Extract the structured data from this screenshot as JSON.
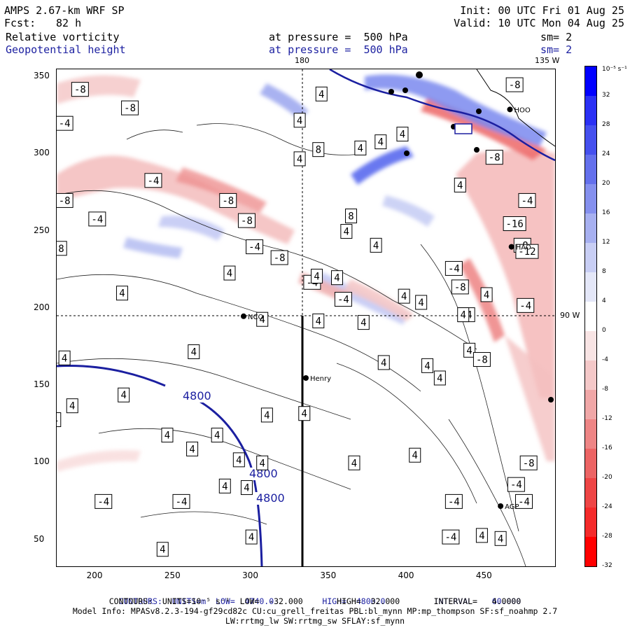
{
  "header": {
    "title": "AMPS 2.67-km WRF SP",
    "fcst_label": "Fcst:",
    "fcst_value": "82 h",
    "init": "Init: 00 UTC Fri 01 Aug 25",
    "valid": "Valid: 10 UTC Mon 04 Aug 25",
    "field1": "Relative vorticity",
    "field2": "Geopotential height",
    "pressure1": "at pressure =  500 hPa",
    "pressure2": "at pressure =  500 hPa",
    "sm1": "sm= 2",
    "sm2": "sm= 2"
  },
  "map": {
    "meridian_180": "180",
    "meridian_135w": "135 W",
    "meridian_90w": "90 W",
    "stations": [
      {
        "name": "NCO",
        "x": 295,
        "y": 195
      },
      {
        "name": "Henry",
        "x": 335,
        "y": 155
      },
      {
        "name": "AGP",
        "x": 460,
        "y": 72
      },
      {
        "name": "HAO",
        "x": 467,
        "y": 240
      },
      {
        "name": "HOO",
        "x": 466,
        "y": 329
      }
    ],
    "height_contour_labels": [
      "4800",
      "4800",
      "4800"
    ],
    "vort_labels": [
      {
        "t": "-8",
        "x": 190,
        "y": 342
      },
      {
        "t": "-8",
        "x": 222,
        "y": 330
      },
      {
        "t": "-4",
        "x": 180,
        "y": 320
      },
      {
        "t": "-4",
        "x": 237,
        "y": 283
      },
      {
        "t": "-8",
        "x": 180,
        "y": 270
      },
      {
        "t": "-4",
        "x": 201,
        "y": 258
      },
      {
        "t": "-8",
        "x": 176,
        "y": 239
      },
      {
        "t": "-8",
        "x": 285,
        "y": 270
      },
      {
        "t": "-8",
        "x": 297,
        "y": 257
      },
      {
        "t": "-4",
        "x": 302,
        "y": 240
      },
      {
        "t": "-8",
        "x": 318,
        "y": 233
      },
      {
        "t": "-4",
        "x": 339,
        "y": 217
      },
      {
        "t": "-4",
        "x": 359,
        "y": 206
      },
      {
        "t": "4",
        "x": 345,
        "y": 339
      },
      {
        "t": "4",
        "x": 331,
        "y": 322
      },
      {
        "t": "4",
        "x": 331,
        "y": 297
      },
      {
        "t": "8",
        "x": 343,
        "y": 303
      },
      {
        "t": "4",
        "x": 370,
        "y": 304
      },
      {
        "t": "4",
        "x": 383,
        "y": 308
      },
      {
        "t": "4",
        "x": 397,
        "y": 313
      },
      {
        "t": "8",
        "x": 364,
        "y": 260
      },
      {
        "t": "4",
        "x": 361,
        "y": 250
      },
      {
        "t": "4",
        "x": 380,
        "y": 241
      },
      {
        "t": "4",
        "x": 342,
        "y": 221
      },
      {
        "t": "4",
        "x": 355,
        "y": 220
      },
      {
        "t": "4",
        "x": 286,
        "y": 223
      },
      {
        "t": "4",
        "x": 217,
        "y": 210
      },
      {
        "t": "4",
        "x": 398,
        "y": 208
      },
      {
        "t": "4",
        "x": 409,
        "y": 204
      },
      {
        "t": "4",
        "x": 434,
        "y": 280
      },
      {
        "t": "-4",
        "x": 430,
        "y": 226
      },
      {
        "t": "-8",
        "x": 434,
        "y": 214
      },
      {
        "t": "4",
        "x": 451,
        "y": 209
      },
      {
        "t": "-4",
        "x": 438,
        "y": 196
      },
      {
        "t": "-8",
        "x": 474,
        "y": 241
      },
      {
        "t": "-16",
        "x": 469,
        "y": 255
      },
      {
        "t": "-12",
        "x": 477,
        "y": 237
      },
      {
        "t": "-4",
        "x": 476,
        "y": 202
      },
      {
        "t": "-8",
        "x": 456,
        "y": 298
      },
      {
        "t": "-4",
        "x": 477,
        "y": 270
      },
      {
        "t": "-8",
        "x": 469,
        "y": 345
      },
      {
        "t": "4",
        "x": 436,
        "y": 196
      },
      {
        "t": "4",
        "x": 440,
        "y": 173
      },
      {
        "t": "-8",
        "x": 448,
        "y": 167
      },
      {
        "t": "4",
        "x": 421,
        "y": 155
      },
      {
        "t": "4",
        "x": 413,
        "y": 163
      },
      {
        "t": "4",
        "x": 385,
        "y": 165
      },
      {
        "t": "4",
        "x": 372,
        "y": 191
      },
      {
        "t": "4",
        "x": 343,
        "y": 192
      },
      {
        "t": "4",
        "x": 307,
        "y": 193
      },
      {
        "t": "4",
        "x": 263,
        "y": 172
      },
      {
        "t": "4",
        "x": 180,
        "y": 168
      },
      {
        "t": "4",
        "x": 166,
        "y": 151
      },
      {
        "t": "4",
        "x": 218,
        "y": 144
      },
      {
        "t": "4",
        "x": 185,
        "y": 137
      },
      {
        "t": "4",
        "x": 174,
        "y": 128
      },
      {
        "t": "4",
        "x": 334,
        "y": 132
      },
      {
        "t": "4",
        "x": 310,
        "y": 131
      },
      {
        "t": "4",
        "x": 278,
        "y": 118
      },
      {
        "t": "4",
        "x": 246,
        "y": 118
      },
      {
        "t": "4",
        "x": 262,
        "y": 109
      },
      {
        "t": "4",
        "x": 292,
        "y": 102
      },
      {
        "t": "4",
        "x": 307,
        "y": 100
      },
      {
        "t": "4",
        "x": 366,
        "y": 100
      },
      {
        "t": "4",
        "x": 283,
        "y": 85
      },
      {
        "t": "4",
        "x": 297,
        "y": 84
      },
      {
        "t": "4",
        "x": 405,
        "y": 105
      },
      {
        "t": "-8",
        "x": 478,
        "y": 100
      },
      {
        "t": "-4",
        "x": 470,
        "y": 86
      },
      {
        "t": "-4",
        "x": 430,
        "y": 75
      },
      {
        "t": "-4",
        "x": 475,
        "y": 75
      },
      {
        "t": "-4",
        "x": 205,
        "y": 75
      },
      {
        "t": "-4",
        "x": 255,
        "y": 75
      },
      {
        "t": "4",
        "x": 300,
        "y": 52
      },
      {
        "t": "4",
        "x": 243,
        "y": 44
      },
      {
        "t": "-4",
        "x": 428,
        "y": 52
      },
      {
        "t": "4",
        "x": 448,
        "y": 53
      },
      {
        "t": "4",
        "x": 460,
        "y": 51
      }
    ]
  },
  "x_ticks": [
    "200",
    "250",
    "300",
    "350",
    "400",
    "450"
  ],
  "y_ticks": [
    "350",
    "300",
    "250",
    "200",
    "150",
    "100",
    "50"
  ],
  "colorbar": {
    "unit_label": "10⁻⁵ s⁻¹",
    "labels": [
      "32",
      "28",
      "24",
      "20",
      "16",
      "12",
      "8",
      "4",
      "0",
      "-4",
      "-8",
      "-12",
      "-16",
      "-20",
      "-24",
      "-28",
      "-32"
    ],
    "colors": [
      "#0000ff",
      "#2a30f4",
      "#4550ee",
      "#6470ec",
      "#8590ee",
      "#a7b0f0",
      "#c8cef4",
      "#e4e7f8",
      "#ffffff",
      "#f8e4e4",
      "#f4c8c8",
      "#f0a7a7",
      "#ee8585",
      "#ec6464",
      "#ee4545",
      "#f42a2a",
      "#ff0000"
    ]
  },
  "footer": {
    "line1_a": "CONTOURS:  UNITS=m  LOW=  4740.0",
    "line1_b": "HIGH=  4800.0",
    "line1_c": "INTERVAL=   60.000",
    "line2": "CONTOURS:  UNITS=10⁻⁵ s⁻¹  LOW=  -32.000       HIGH=  32.000       INTERVAL=   4.0000",
    "line3": "Model Info: MPASv8.2.3-194-gf29cd82c CU:cu_grell_freitas PBL:bl_mynn MP:mp_thompson SF:sf_noahmp 2.7",
    "line4": "LW:rrtmg_lw SW:rrtmg_sw SFLAY:sf_mynn"
  }
}
